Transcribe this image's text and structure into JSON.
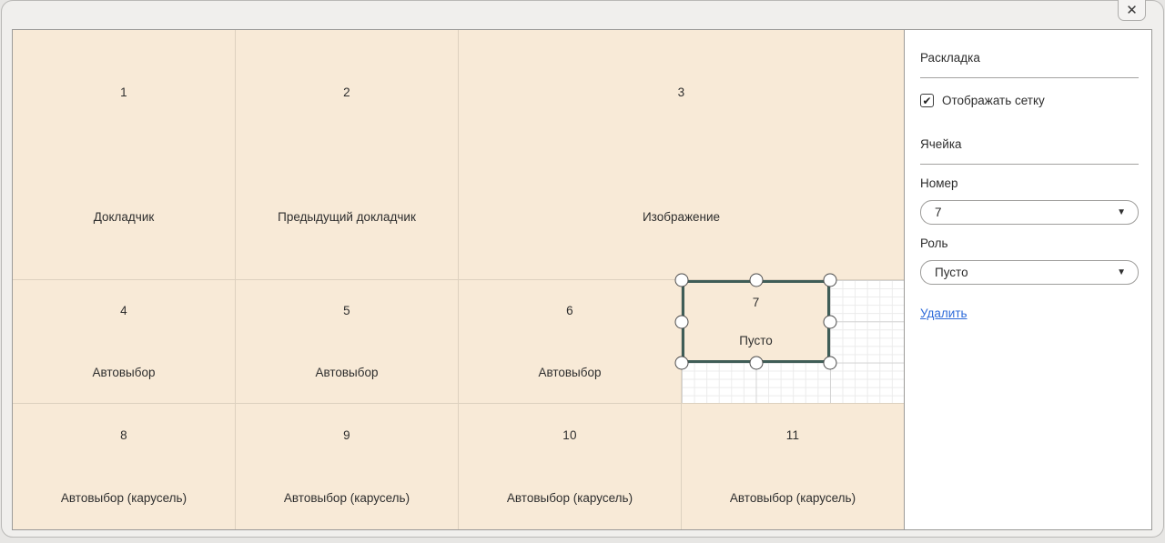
{
  "window": {
    "close_icon": "✕"
  },
  "colors": {
    "selection_border": "#3f5d57",
    "cell_fill": "#f8ead7",
    "link": "#2e6bd9"
  },
  "panel": {
    "layout_section": {
      "title": "Раскладка",
      "show_grid_label": "Отображать сетку",
      "checkbox_checked": true,
      "checkbox_glyph": "✔"
    },
    "cell_section": {
      "title": "Ячейка",
      "number_label": "Номер",
      "number_value": "7",
      "role_label": "Роль",
      "role_value": "Пусто",
      "dropdown_caret": "▼",
      "delete_label": "Удалить"
    }
  },
  "cells": [
    {
      "number": "1",
      "role": "Докладчик",
      "selected": false
    },
    {
      "number": "2",
      "role": "Предыдущий докладчик",
      "selected": false
    },
    {
      "number": "3",
      "role": "Изображение",
      "selected": false
    },
    {
      "number": "4",
      "role": "Автовыбор",
      "selected": false
    },
    {
      "number": "5",
      "role": "Автовыбор",
      "selected": false
    },
    {
      "number": "6",
      "role": "Автовыбор",
      "selected": false
    },
    {
      "number": "7",
      "role": "Пусто",
      "selected": true
    },
    {
      "number": "8",
      "role": "Автовыбор (карусель)",
      "selected": false
    },
    {
      "number": "9",
      "role": "Автовыбор (карусель)",
      "selected": false
    },
    {
      "number": "10",
      "role": "Автовыбор (карусель)",
      "selected": false
    },
    {
      "number": "11",
      "role": "Автовыбор (карусель)",
      "selected": false
    }
  ]
}
